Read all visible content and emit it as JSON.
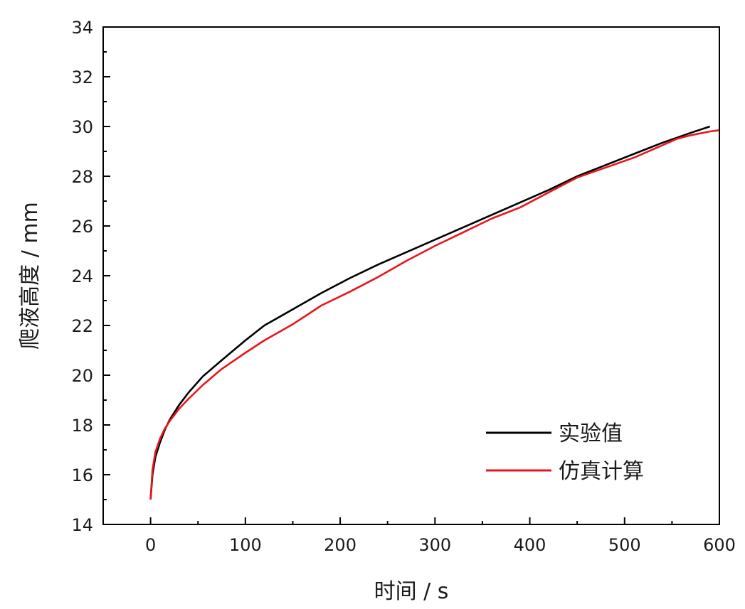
{
  "chart_data": {
    "type": "line",
    "xlabel": "时间 / s",
    "ylabel": "爬液高度 / mm",
    "xlim": [
      -50,
      600
    ],
    "ylim": [
      14,
      34
    ],
    "x_ticks": [
      0,
      100,
      200,
      300,
      400,
      500,
      600
    ],
    "y_ticks": [
      14,
      16,
      18,
      20,
      22,
      24,
      26,
      28,
      30,
      32,
      34
    ],
    "x_tick_labels": [
      "0",
      "100",
      "200",
      "300",
      "400",
      "500",
      "600"
    ],
    "y_tick_labels": [
      "14",
      "16",
      "18",
      "20",
      "22",
      "24",
      "26",
      "28",
      "30",
      "32",
      "34"
    ],
    "grid": false,
    "legend_position": "bottom-right",
    "series": [
      {
        "name": "实验值",
        "color": "#000000",
        "x": [
          0,
          2,
          5,
          10,
          15,
          20,
          30,
          40,
          55,
          75,
          100,
          120,
          150,
          180,
          210,
          240,
          270,
          300,
          330,
          360,
          390,
          420,
          450,
          480,
          510,
          540,
          570,
          590
        ],
        "y": [
          15.0,
          16.0,
          16.7,
          17.3,
          17.8,
          18.2,
          18.8,
          19.3,
          19.95,
          20.6,
          21.4,
          22.0,
          22.65,
          23.3,
          23.9,
          24.45,
          24.95,
          25.45,
          25.95,
          26.45,
          26.95,
          27.45,
          28.0,
          28.45,
          28.9,
          29.35,
          29.75,
          30.0
        ]
      },
      {
        "name": "仿真计算",
        "color": "#e8161b",
        "x": [
          0,
          2,
          5,
          10,
          15,
          20,
          30,
          40,
          55,
          75,
          100,
          120,
          150,
          180,
          210,
          240,
          270,
          300,
          330,
          360,
          390,
          420,
          450,
          480,
          510,
          540,
          555,
          570,
          590,
          600
        ],
        "y": [
          15.0,
          16.2,
          16.9,
          17.45,
          17.85,
          18.15,
          18.65,
          19.05,
          19.6,
          20.25,
          20.9,
          21.4,
          22.05,
          22.8,
          23.35,
          23.95,
          24.6,
          25.2,
          25.75,
          26.3,
          26.75,
          27.35,
          27.95,
          28.35,
          28.75,
          29.25,
          29.5,
          29.65,
          29.8,
          29.85
        ]
      }
    ]
  }
}
